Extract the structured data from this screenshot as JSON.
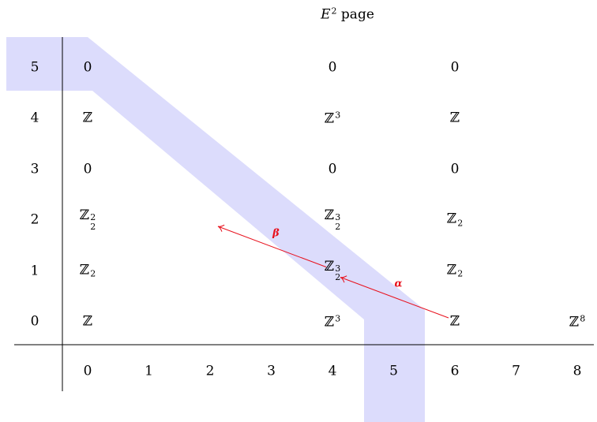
{
  "title": {
    "base": "E",
    "sup": "2",
    "rest": "page"
  },
  "colors": {
    "band": "#dcdcfc",
    "arrow": "#e8101c",
    "axis": "#000000"
  },
  "x_ticks": [
    "0",
    "1",
    "2",
    "3",
    "4",
    "5",
    "6",
    "7",
    "8"
  ],
  "y_ticks": [
    "0",
    "1",
    "2",
    "3",
    "4",
    "5"
  ],
  "entries": [
    {
      "p": 0,
      "q": 5,
      "base": "0"
    },
    {
      "p": 4,
      "q": 5,
      "base": "0"
    },
    {
      "p": 6,
      "q": 5,
      "base": "0"
    },
    {
      "p": 0,
      "q": 4,
      "base": "ℤ"
    },
    {
      "p": 4,
      "q": 4,
      "base": "ℤ",
      "sup": "3"
    },
    {
      "p": 6,
      "q": 4,
      "base": "ℤ"
    },
    {
      "p": 0,
      "q": 3,
      "base": "0"
    },
    {
      "p": 4,
      "q": 3,
      "base": "0"
    },
    {
      "p": 6,
      "q": 3,
      "base": "0"
    },
    {
      "p": 0,
      "q": 2,
      "base": "ℤ",
      "sup": "2",
      "sub": "2"
    },
    {
      "p": 4,
      "q": 2,
      "base": "ℤ",
      "sup": "3",
      "sub": "2"
    },
    {
      "p": 6,
      "q": 2,
      "base": "ℤ",
      "sub": "2"
    },
    {
      "p": 0,
      "q": 1,
      "base": "ℤ",
      "sub": "2"
    },
    {
      "p": 4,
      "q": 1,
      "base": "ℤ",
      "sup": "3",
      "sub": "2"
    },
    {
      "p": 6,
      "q": 1,
      "base": "ℤ",
      "sub": "2"
    },
    {
      "p": 0,
      "q": 0,
      "base": "ℤ"
    },
    {
      "p": 4,
      "q": 0,
      "base": "ℤ",
      "sup": "3"
    },
    {
      "p": 6,
      "q": 0,
      "base": "ℤ"
    },
    {
      "p": 8,
      "q": 0,
      "base": "ℤ",
      "sup": "8"
    }
  ],
  "arrows": [
    {
      "name": "alpha",
      "label": "α",
      "from": [
        6,
        0
      ],
      "to": [
        4,
        1
      ]
    },
    {
      "name": "beta",
      "label": "β",
      "from": [
        4,
        1
      ],
      "to": [
        2,
        2
      ]
    }
  ]
}
